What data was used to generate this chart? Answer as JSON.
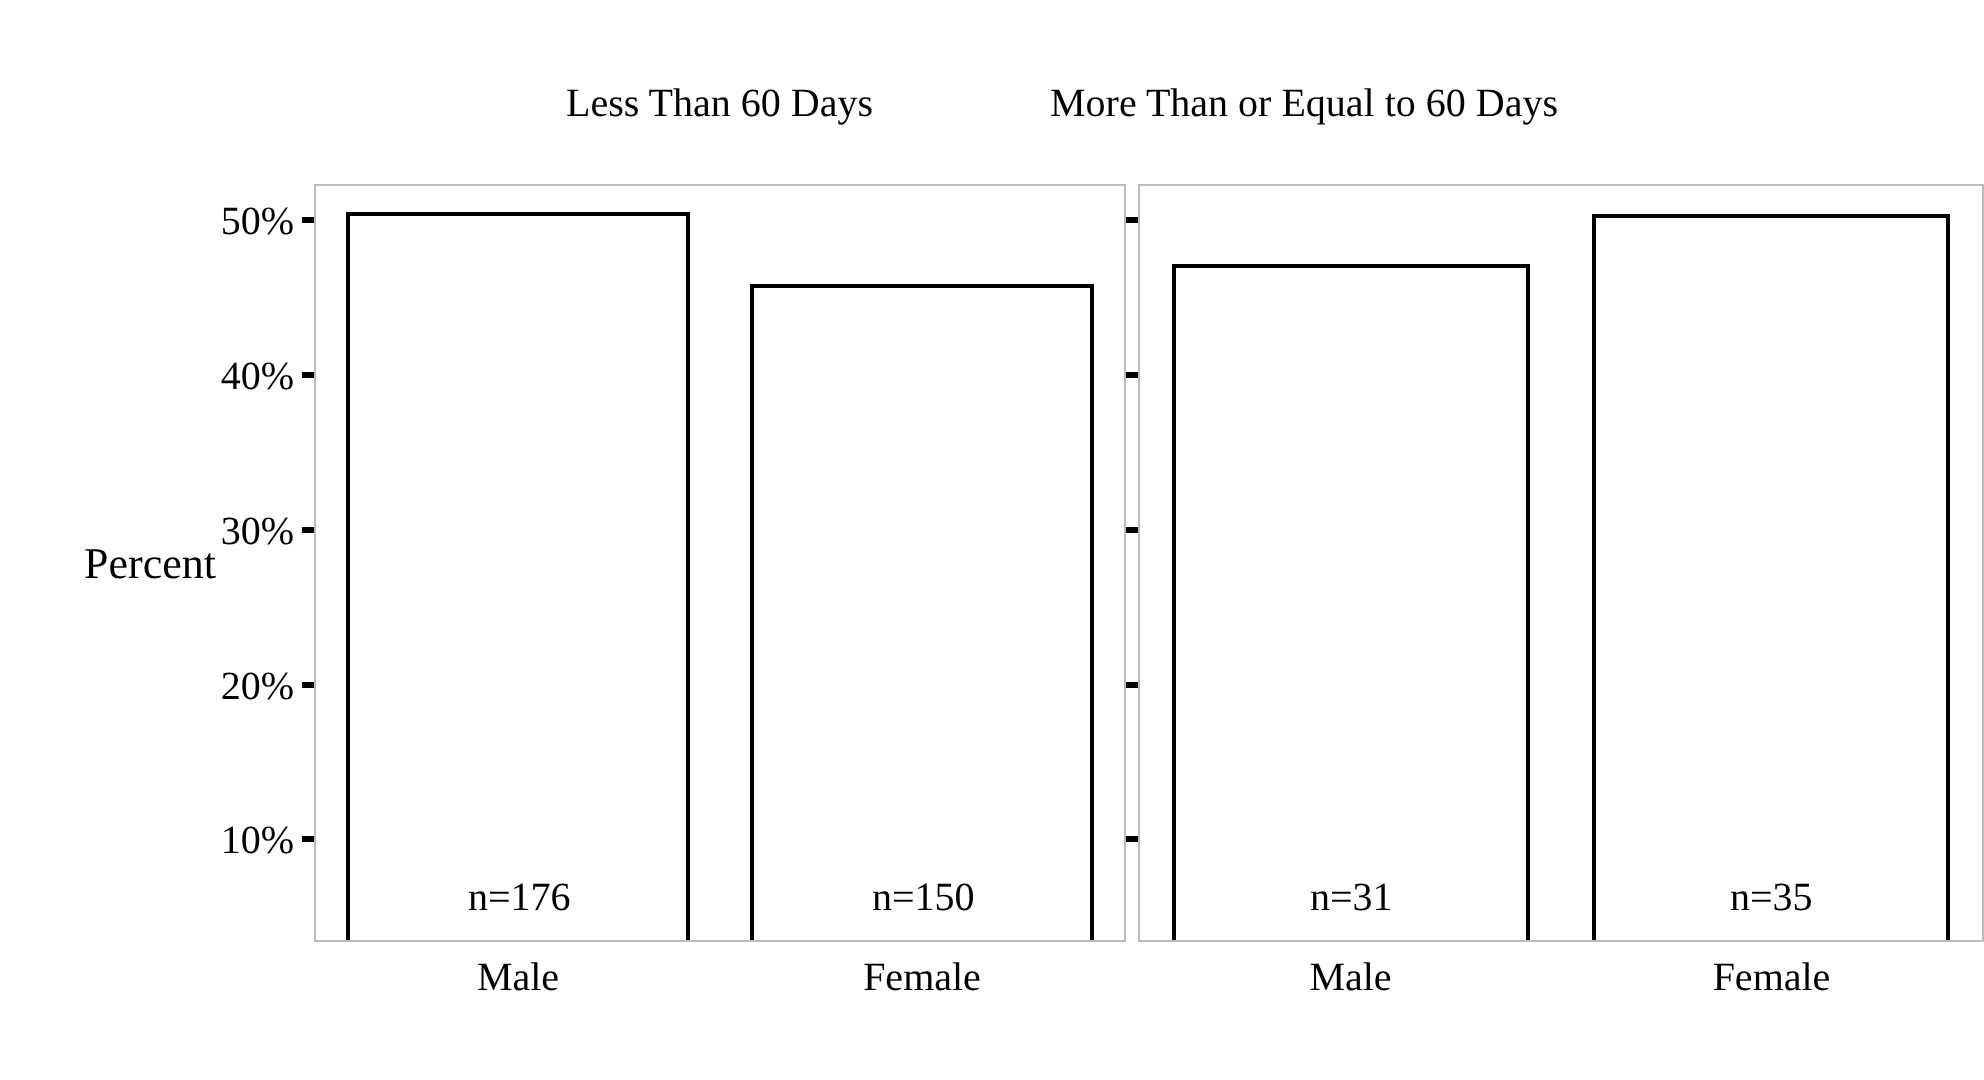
{
  "chart_data": [
    {
      "type": "bar",
      "title": "Less Than 60 Days",
      "ylabel": "Percent",
      "categories": [
        "Male",
        "Female"
      ],
      "series": [
        {
          "color": "#ffffff",
          "values": [
            50.4,
            45.7
          ]
        }
      ],
      "ylim": [
        3.5,
        52.2
      ],
      "yticks": [
        {
          "value": 10,
          "label": "10%"
        },
        {
          "value": 20,
          "label": "20%"
        },
        {
          "value": 30,
          "label": "30%"
        },
        {
          "value": 40,
          "label": "40%"
        },
        {
          "value": 50,
          "label": "50%"
        }
      ],
      "annotations": [
        "n=176",
        "n=150"
      ]
    },
    {
      "type": "bar",
      "title": "More Than or Equal to 60 Days",
      "categories": [
        "Male",
        "Female"
      ],
      "series": [
        {
          "color": "#ffffff",
          "values": [
            47.0,
            50.3
          ]
        }
      ],
      "ylim": [
        3.5,
        52.2
      ],
      "yticks": [
        {
          "value": 10,
          "label": null
        },
        {
          "value": 20,
          "label": null
        },
        {
          "value": 30,
          "label": null
        },
        {
          "value": 40,
          "label": null
        },
        {
          "value": 50,
          "label": null
        }
      ],
      "annotations": [
        "n=31",
        "n=35"
      ],
      "tick_labels": "x"
    }
  ]
}
